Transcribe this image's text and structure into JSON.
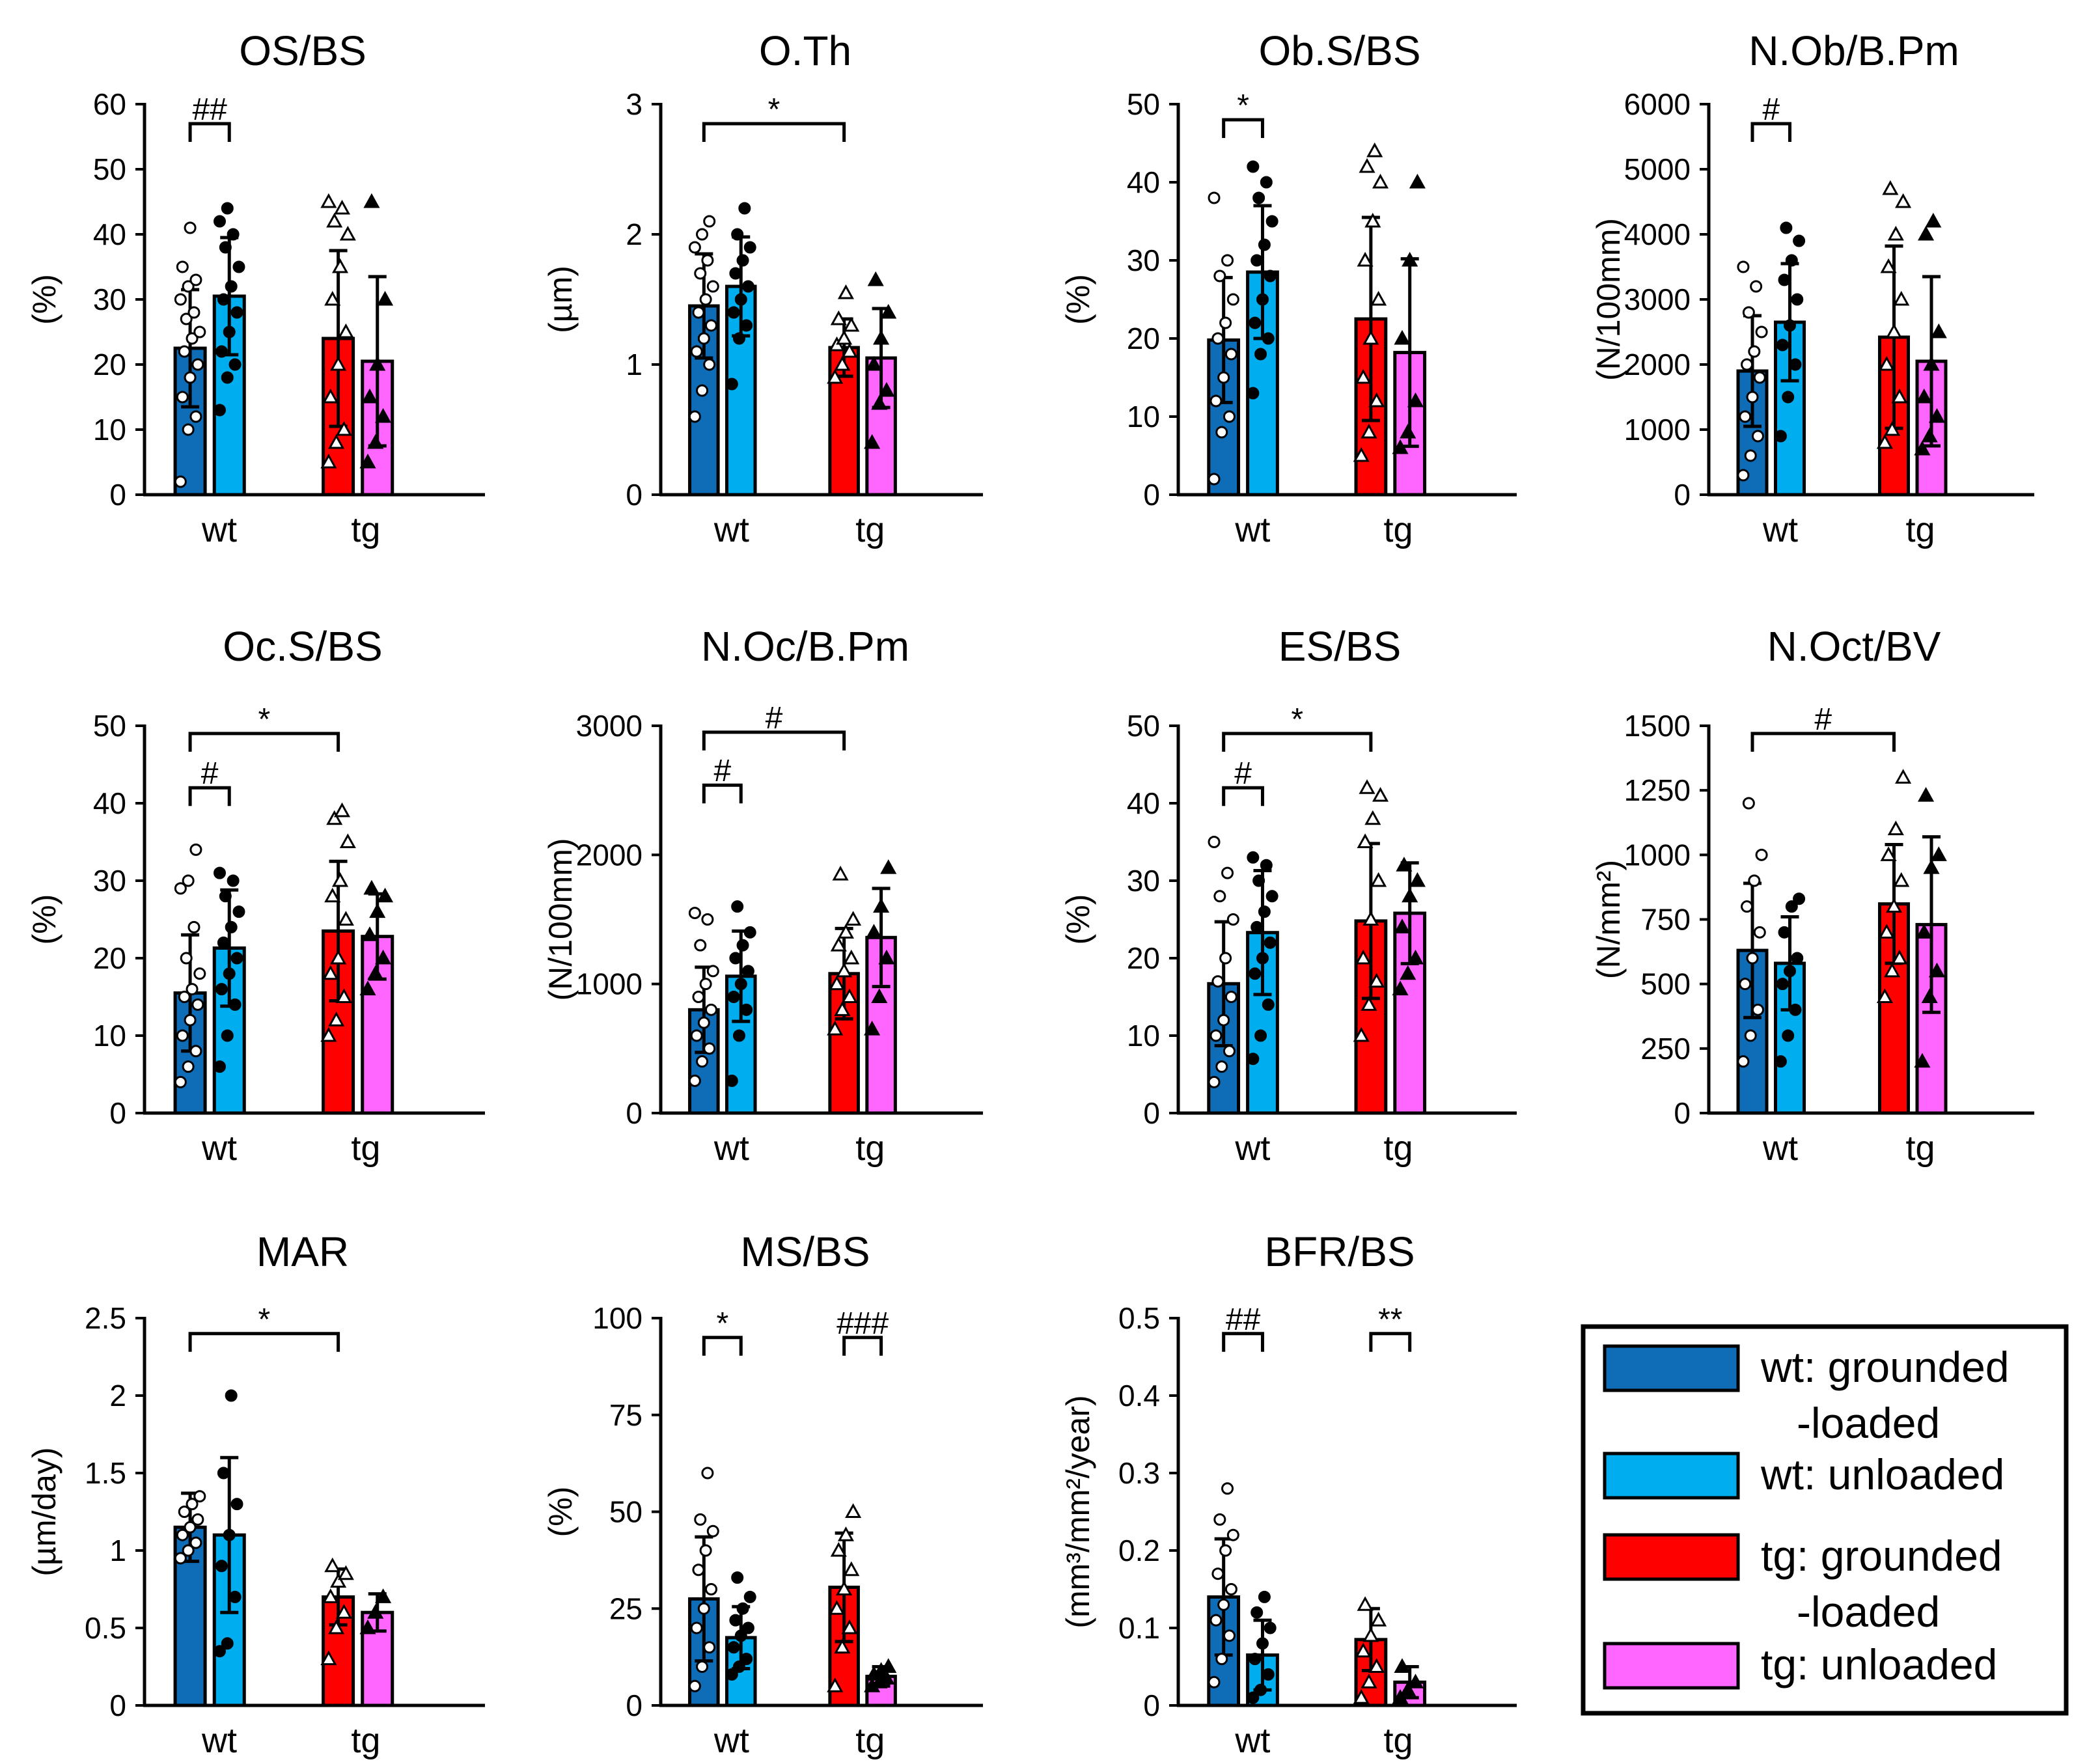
{
  "chart_data": [
    {
      "type": "bar",
      "title": "OS/BS",
      "ylabel": "(%)",
      "ylim": [
        0,
        60
      ],
      "yticks": [
        "0",
        "10",
        "20",
        "30",
        "40",
        "50",
        "60"
      ],
      "groups": [
        "wt",
        "tg"
      ],
      "bars": [
        {
          "series": "wt: grounded-loaded",
          "value": 22.5,
          "error": 9
        },
        {
          "series": "wt: unloaded",
          "value": 30.5,
          "error": 9
        },
        {
          "series": "tg: grounded-loaded",
          "value": 24,
          "error": 13.5
        },
        {
          "series": "tg: unloaded",
          "value": 20.5,
          "error": 13
        }
      ],
      "points": [
        [
          2,
          10,
          12,
          15,
          18,
          20,
          22,
          24,
          25,
          27,
          28,
          30,
          32,
          33,
          35,
          41
        ],
        [
          13,
          18,
          20,
          22,
          25,
          28,
          30,
          32,
          35,
          38,
          40,
          42,
          44
        ],
        [
          5,
          8,
          10,
          15,
          20,
          25,
          30,
          35,
          40,
          42,
          44,
          45
        ],
        [
          5,
          8,
          12,
          15,
          20,
          30,
          45
        ]
      ],
      "brackets": [
        {
          "from": 0,
          "to": 1,
          "label": "##",
          "level": 57
        }
      ]
    },
    {
      "type": "bar",
      "title": "O.Th",
      "ylabel": "(µm)",
      "ylim": [
        0,
        3
      ],
      "yticks": [
        "0",
        "1",
        "2",
        "3"
      ],
      "groups": [
        "wt",
        "tg"
      ],
      "bars": [
        {
          "series": "wt: grounded-loaded",
          "value": 1.45,
          "error": 0.4
        },
        {
          "series": "wt: unloaded",
          "value": 1.6,
          "error": 0.38
        },
        {
          "series": "tg: grounded-loaded",
          "value": 1.13,
          "error": 0.22
        },
        {
          "series": "tg: unloaded",
          "value": 1.05,
          "error": 0.38
        }
      ],
      "points": [
        [
          0.6,
          0.8,
          1.0,
          1.1,
          1.2,
          1.3,
          1.4,
          1.5,
          1.6,
          1.7,
          1.8,
          1.9,
          2.0,
          2.1
        ],
        [
          0.85,
          1.2,
          1.3,
          1.4,
          1.5,
          1.6,
          1.7,
          1.8,
          1.9,
          2.0,
          2.2
        ],
        [
          0.9,
          1.0,
          1.1,
          1.15,
          1.2,
          1.3,
          1.35,
          1.55
        ],
        [
          0.4,
          0.7,
          0.8,
          1.0,
          1.2,
          1.4,
          1.65
        ]
      ],
      "brackets": [
        {
          "from": 0,
          "to": 2,
          "label": "*",
          "level": 2.85
        }
      ]
    },
    {
      "type": "bar",
      "title": "Ob.S/BS",
      "ylabel": "(%)",
      "ylim": [
        0,
        50
      ],
      "yticks": [
        "0",
        "10",
        "20",
        "30",
        "40",
        "50"
      ],
      "groups": [
        "wt",
        "tg"
      ],
      "bars": [
        {
          "series": "wt: grounded-loaded",
          "value": 19.8,
          "error": 8
        },
        {
          "series": "wt: unloaded",
          "value": 28.5,
          "error": 8.5
        },
        {
          "series": "tg: grounded-loaded",
          "value": 22.5,
          "error": 13
        },
        {
          "series": "tg: unloaded",
          "value": 18.2,
          "error": 12
        }
      ],
      "points": [
        [
          2,
          8,
          10,
          12,
          15,
          18,
          20,
          22,
          25,
          28,
          30,
          38
        ],
        [
          13,
          18,
          20,
          22,
          25,
          28,
          30,
          32,
          35,
          38,
          40,
          42
        ],
        [
          5,
          8,
          12,
          15,
          20,
          25,
          30,
          35,
          40,
          42,
          44
        ],
        [
          6,
          8,
          12,
          20,
          30,
          40
        ]
      ],
      "brackets": [
        {
          "from": 0,
          "to": 1,
          "label": "*",
          "level": 48
        }
      ]
    },
    {
      "type": "bar",
      "title": "N.Ob/B.Pm",
      "ylabel": "(N/100mm)",
      "ylim": [
        0,
        6000
      ],
      "yticks": [
        "0",
        "1000",
        "2000",
        "3000",
        "4000",
        "5000",
        "6000"
      ],
      "groups": [
        "wt",
        "tg"
      ],
      "bars": [
        {
          "series": "wt: grounded-loaded",
          "value": 1900,
          "error": 850
        },
        {
          "series": "wt: unloaded",
          "value": 2650,
          "error": 900
        },
        {
          "series": "tg: grounded-loaded",
          "value": 2420,
          "error": 1400
        },
        {
          "series": "tg: unloaded",
          "value": 2050,
          "error": 1300
        }
      ],
      "points": [
        [
          300,
          600,
          900,
          1200,
          1500,
          1800,
          2000,
          2200,
          2500,
          2800,
          3200,
          3500
        ],
        [
          900,
          1500,
          2000,
          2300,
          2600,
          3000,
          3300,
          3600,
          3900,
          4100
        ],
        [
          800,
          1000,
          1500,
          2000,
          2500,
          3000,
          3500,
          4000,
          4500,
          4700
        ],
        [
          700,
          900,
          1200,
          1500,
          2000,
          2500,
          4000,
          4200
        ]
      ],
      "brackets": [
        {
          "from": 0,
          "to": 1,
          "label": "#",
          "level": 5700
        }
      ]
    },
    {
      "type": "bar",
      "title": "Oc.S/BS",
      "ylabel": "(%)",
      "ylim": [
        0,
        50
      ],
      "yticks": [
        "0",
        "10",
        "20",
        "30",
        "40",
        "50"
      ],
      "groups": [
        "wt",
        "tg"
      ],
      "bars": [
        {
          "series": "wt: grounded-loaded",
          "value": 15.5,
          "error": 7.5
        },
        {
          "series": "wt: unloaded",
          "value": 21.3,
          "error": 7.5
        },
        {
          "series": "tg: grounded-loaded",
          "value": 23.5,
          "error": 9
        },
        {
          "series": "tg: unloaded",
          "value": 22.8,
          "error": 5.5
        }
      ],
      "points": [
        [
          4,
          6,
          8,
          10,
          12,
          14,
          15,
          16,
          18,
          20,
          24,
          29,
          30,
          34
        ],
        [
          6,
          10,
          14,
          16,
          18,
          20,
          22,
          24,
          26,
          28,
          30,
          31
        ],
        [
          10,
          12,
          15,
          18,
          20,
          25,
          28,
          30,
          35,
          38,
          39
        ],
        [
          16,
          18,
          20,
          23,
          26,
          28,
          29
        ]
      ],
      "brackets": [
        {
          "from": 0,
          "to": 1,
          "label": "#",
          "level": 42
        },
        {
          "from": 0,
          "to": 2,
          "label": "*",
          "level": 49
        }
      ]
    },
    {
      "type": "bar",
      "title": "N.Oc/B.Pm",
      "ylabel": "(N/100mm)",
      "ylim": [
        0,
        3000
      ],
      "yticks": [
        "0",
        "1000",
        "2000",
        "3000"
      ],
      "groups": [
        "wt",
        "tg"
      ],
      "bars": [
        {
          "series": "wt: grounded-loaded",
          "value": 800,
          "error": 330
        },
        {
          "series": "wt: unloaded",
          "value": 1060,
          "error": 350
        },
        {
          "series": "tg: grounded-loaded",
          "value": 1080,
          "error": 350
        },
        {
          "series": "tg: unloaded",
          "value": 1360,
          "error": 380
        }
      ],
      "points": [
        [
          250,
          400,
          500,
          600,
          700,
          800,
          900,
          1000,
          1100,
          1300,
          1500,
          1550
        ],
        [
          250,
          600,
          800,
          900,
          1000,
          1100,
          1200,
          1300,
          1400,
          1600
        ],
        [
          650,
          800,
          900,
          1000,
          1100,
          1200,
          1300,
          1400,
          1500,
          1850
        ],
        [
          650,
          900,
          1200,
          1400,
          1600,
          1900
        ]
      ],
      "brackets": [
        {
          "from": 0,
          "to": 1,
          "label": "#",
          "level": 2540
        },
        {
          "from": 0,
          "to": 2,
          "label": "#",
          "level": 2950
        }
      ]
    },
    {
      "type": "bar",
      "title": "ES/BS",
      "ylabel": "(%)",
      "ylim": [
        0,
        50
      ],
      "yticks": [
        "0",
        "10",
        "20",
        "30",
        "40",
        "50"
      ],
      "groups": [
        "wt",
        "tg"
      ],
      "bars": [
        {
          "series": "wt: grounded-loaded",
          "value": 16.7,
          "error": 8
        },
        {
          "series": "wt: unloaded",
          "value": 23.3,
          "error": 8
        },
        {
          "series": "tg: grounded-loaded",
          "value": 24.8,
          "error": 10
        },
        {
          "series": "tg: unloaded",
          "value": 25.8,
          "error": 6.5
        }
      ],
      "points": [
        [
          4,
          6,
          8,
          10,
          12,
          15,
          17,
          20,
          25,
          28,
          31,
          35
        ],
        [
          7,
          10,
          14,
          18,
          20,
          22,
          24,
          26,
          28,
          30,
          32,
          33
        ],
        [
          10,
          14,
          17,
          20,
          25,
          30,
          35,
          38,
          41,
          42
        ],
        [
          16,
          18,
          20,
          24,
          28,
          30,
          32
        ]
      ],
      "brackets": [
        {
          "from": 0,
          "to": 1,
          "label": "#",
          "level": 42
        },
        {
          "from": 0,
          "to": 2,
          "label": "*",
          "level": 49
        }
      ]
    },
    {
      "type": "bar",
      "title": "N.Oct/BV",
      "ylabel": "(N/mm²)",
      "ylim": [
        0,
        1500
      ],
      "yticks": [
        "0",
        "250",
        "500",
        "750",
        "1000",
        "1250",
        "1500"
      ],
      "groups": [
        "wt",
        "tg"
      ],
      "bars": [
        {
          "series": "wt: grounded-loaded",
          "value": 630,
          "error": 260
        },
        {
          "series": "wt: unloaded",
          "value": 580,
          "error": 180
        },
        {
          "series": "tg: grounded-loaded",
          "value": 810,
          "error": 230
        },
        {
          "series": "tg: unloaded",
          "value": 730,
          "error": 340
        }
      ],
      "points": [
        [
          200,
          300,
          400,
          500,
          600,
          700,
          800,
          900,
          1000,
          1200
        ],
        [
          200,
          300,
          400,
          500,
          550,
          600,
          700,
          800,
          830
        ],
        [
          450,
          550,
          600,
          700,
          800,
          900,
          1000,
          1100,
          1300
        ],
        [
          200,
          450,
          550,
          700,
          950,
          1000,
          1230
        ]
      ],
      "brackets": [
        {
          "from": 0,
          "to": 2,
          "label": "#",
          "level": 1470
        }
      ]
    },
    {
      "type": "bar",
      "title": "MAR",
      "ylabel": "(µm/day)",
      "ylim": [
        0,
        2.5
      ],
      "yticks": [
        "0",
        "0.5",
        "1",
        "1.5",
        "2",
        "2.5"
      ],
      "groups": [
        "wt",
        "tg"
      ],
      "bars": [
        {
          "series": "wt: grounded-loaded",
          "value": 1.15,
          "error": 0.22
        },
        {
          "series": "wt: unloaded",
          "value": 1.1,
          "error": 0.5
        },
        {
          "series": "tg: grounded-loaded",
          "value": 0.7,
          "error": 0.18
        },
        {
          "series": "tg: unloaded",
          "value": 0.6,
          "error": 0.12
        }
      ],
      "points": [
        [
          0.95,
          1.0,
          1.05,
          1.1,
          1.15,
          1.2,
          1.25,
          1.3,
          1.35
        ],
        [
          0.35,
          0.4,
          0.7,
          0.9,
          1.1,
          1.3,
          1.5,
          2.0
        ],
        [
          0.3,
          0.5,
          0.6,
          0.7,
          0.8,
          0.85,
          0.9
        ],
        [
          0.5,
          0.6,
          0.7
        ]
      ],
      "brackets": [
        {
          "from": 0,
          "to": 2,
          "label": "*",
          "level": 2.4
        }
      ]
    },
    {
      "type": "bar",
      "title": "MS/BS",
      "ylabel": "(%)",
      "ylim": [
        0,
        100
      ],
      "yticks": [
        "0",
        "25",
        "50",
        "75",
        "100"
      ],
      "groups": [
        "wt",
        "tg"
      ],
      "bars": [
        {
          "series": "wt: grounded-loaded",
          "value": 27.5,
          "error": 16
        },
        {
          "series": "wt: unloaded",
          "value": 17.5,
          "error": 8
        },
        {
          "series": "tg: grounded-loaded",
          "value": 30.5,
          "error": 14
        },
        {
          "series": "tg: unloaded",
          "value": 7.5,
          "error": 2.5
        }
      ],
      "points": [
        [
          5,
          10,
          15,
          20,
          25,
          30,
          35,
          40,
          45,
          48,
          60
        ],
        [
          8,
          10,
          12,
          15,
          18,
          20,
          22,
          25,
          28,
          33
        ],
        [
          5,
          15,
          20,
          25,
          30,
          35,
          40,
          44,
          50
        ],
        [
          5,
          6,
          7,
          8,
          9,
          10
        ]
      ],
      "brackets": [
        {
          "from": 0,
          "to": 1,
          "label": "*",
          "level": 95
        },
        {
          "from": 2,
          "to": 3,
          "label": "###",
          "level": 95
        }
      ]
    },
    {
      "type": "bar",
      "title": "BFR/BS",
      "ylabel": "(mm³/mm²/year)",
      "ylim": [
        0,
        0.5
      ],
      "yticks": [
        "0",
        "0.1",
        "0.2",
        "0.3",
        "0.4",
        "0.5"
      ],
      "groups": [
        "wt",
        "tg"
      ],
      "bars": [
        {
          "series": "wt: grounded-loaded",
          "value": 0.14,
          "error": 0.075
        },
        {
          "series": "wt: unloaded",
          "value": 0.065,
          "error": 0.045
        },
        {
          "series": "tg: grounded-loaded",
          "value": 0.085,
          "error": 0.04
        },
        {
          "series": "tg: unloaded",
          "value": 0.03,
          "error": 0.02
        }
      ],
      "points": [
        [
          0.03,
          0.06,
          0.09,
          0.11,
          0.13,
          0.15,
          0.17,
          0.2,
          0.22,
          0.24,
          0.28
        ],
        [
          0.01,
          0.02,
          0.04,
          0.06,
          0.08,
          0.1,
          0.12,
          0.14
        ],
        [
          0.01,
          0.03,
          0.05,
          0.07,
          0.09,
          0.11,
          0.13
        ],
        [
          0.01,
          0.02,
          0.03,
          0.05
        ]
      ],
      "brackets": [
        {
          "from": 0,
          "to": 1,
          "label": "##",
          "level": 0.48
        },
        {
          "from": 2,
          "to": 3,
          "label": "**",
          "level": 0.48
        }
      ]
    }
  ],
  "legend": [
    {
      "lines": [
        "wt: grounded",
        "-loaded"
      ],
      "color": "#0f6cb6"
    },
    {
      "lines": [
        "wt: unloaded"
      ],
      "color": "#00aeef"
    },
    {
      "lines": [
        "tg: grounded",
        "-loaded"
      ],
      "color": "#ff0000"
    },
    {
      "lines": [
        "tg: unloaded"
      ],
      "color": "#ff66ff"
    }
  ],
  "series_markers": [
    "open-circle",
    "filled-circle",
    "open-triangle",
    "filled-triangle"
  ]
}
